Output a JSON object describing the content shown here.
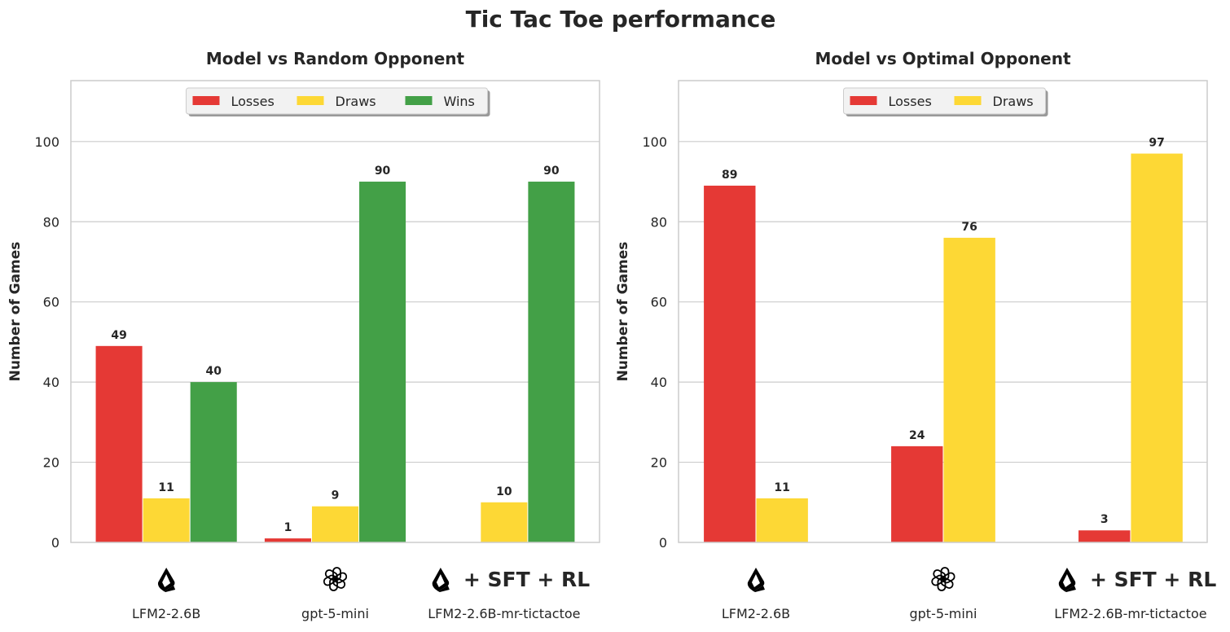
{
  "title": "Tic Tac Toe performance",
  "chart_data": [
    {
      "type": "bar",
      "title": "Model vs Random Opponent",
      "ylabel": "Number of Games",
      "xlabel": "",
      "categories": [
        "LFM2-2.6B",
        "gpt-5-mini",
        "LFM2-2.6B-mr-tictactoe"
      ],
      "category_icons": [
        "liquid-logo-icon",
        "openai-logo-icon",
        "liquid-logo-icon"
      ],
      "category_tags": [
        "",
        "",
        "+ SFT + RL"
      ],
      "series": [
        {
          "name": "Losses",
          "color": "#e53935",
          "values": [
            49,
            1,
            0
          ]
        },
        {
          "name": "Draws",
          "color": "#fdd835",
          "values": [
            11,
            9,
            10
          ]
        },
        {
          "name": "Wins",
          "color": "#43a047",
          "values": [
            40,
            90,
            90
          ]
        }
      ],
      "yticks": [
        0,
        20,
        40,
        60,
        80,
        100
      ],
      "ylim": [
        0,
        115
      ],
      "grid": "horizontal",
      "legend": "top-center"
    },
    {
      "type": "bar",
      "title": "Model vs Optimal Opponent",
      "ylabel": "Number of Games",
      "xlabel": "",
      "categories": [
        "LFM2-2.6B",
        "gpt-5-mini",
        "LFM2-2.6B-mr-tictactoe"
      ],
      "category_icons": [
        "liquid-logo-icon",
        "openai-logo-icon",
        "liquid-logo-icon"
      ],
      "category_tags": [
        "",
        "",
        "+ SFT + RL"
      ],
      "series": [
        {
          "name": "Losses",
          "color": "#e53935",
          "values": [
            89,
            24,
            3
          ]
        },
        {
          "name": "Draws",
          "color": "#fdd835",
          "values": [
            11,
            76,
            97
          ]
        }
      ],
      "yticks": [
        0,
        20,
        40,
        60,
        80,
        100
      ],
      "ylim": [
        0,
        115
      ],
      "grid": "horizontal",
      "legend": "top-center"
    }
  ]
}
